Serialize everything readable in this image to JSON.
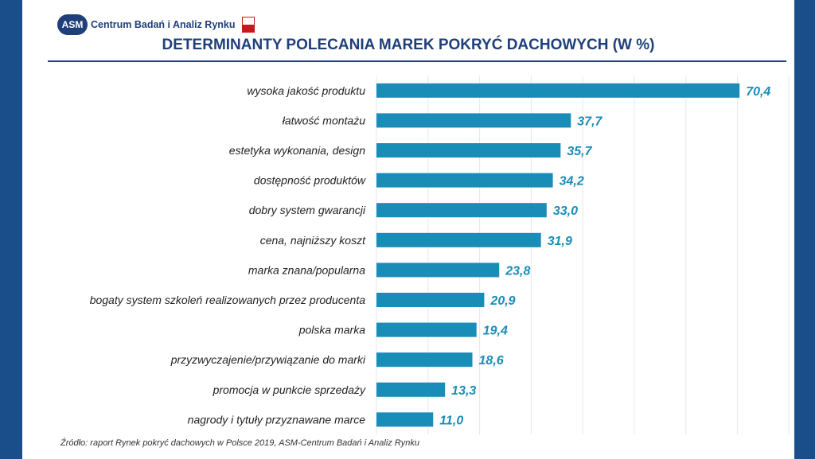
{
  "header": {
    "logo_badge": "ASM",
    "logo_text": "Centrum Badań i Analiz Rynku"
  },
  "footer": {
    "source": "Źródło: raport Rynek pokryć dachowych w Polsce 2019,  ASM-Centrum Badań i Analiz Rynku"
  },
  "colors": {
    "bar": "#1a8cb8",
    "value_label": "#1a8cb8",
    "title": "#1f3f7a"
  },
  "chart_data": {
    "type": "bar",
    "orientation": "horizontal",
    "title": "DETERMINANTY POLECANIA MAREK POKRYĆ DACHOWYCH (W %)",
    "xlabel": "",
    "ylabel": "",
    "xlim": [
      0,
      80
    ],
    "grid": true,
    "categories": [
      "wysoka jakość produktu",
      "łatwość montażu",
      "estetyka wykonania, design",
      "dostępność produktów",
      "dobry system gwarancji",
      "cena, najniższy koszt",
      "marka znana/popularna",
      "bogaty system szkoleń realizowanych przez producenta",
      "polska marka",
      "przyzwyczajenie/przywiązanie do marki",
      "promocja w punkcie sprzedaży",
      "nagrody i tytuły przyznawane marce"
    ],
    "values": [
      70.4,
      37.7,
      35.7,
      34.2,
      33.0,
      31.9,
      23.8,
      20.9,
      19.4,
      18.6,
      13.3,
      11.0
    ],
    "value_labels": [
      "70,4",
      "37,7",
      "35,7",
      "34,2",
      "33,0",
      "31,9",
      "23,8",
      "20,9",
      "19,4",
      "18,6",
      "13,3",
      "11,0"
    ]
  }
}
